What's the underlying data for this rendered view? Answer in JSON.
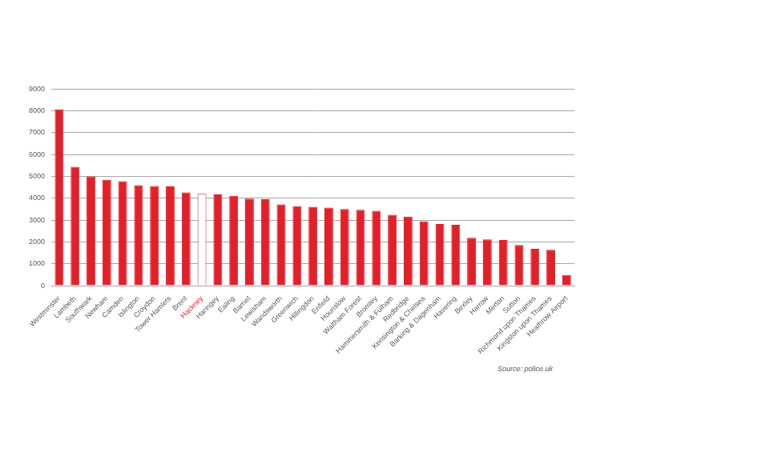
{
  "chart_data": {
    "type": "bar",
    "categories": [
      "Westminster",
      "Lambeth",
      "Southwark",
      "Newham",
      "Camden",
      "Islington",
      "Croydon",
      "Tower Hamlets",
      "Brent",
      "Hackney",
      "Haringey",
      "Ealing",
      "Barnet",
      "Lewisham",
      "Wandsworth",
      "Greenwich",
      "Hillingdon",
      "Enfield",
      "Hounslow",
      "Waltham Forest",
      "Bromley",
      "Hammersmith & Fulham",
      "Redbridge",
      "Kensington & Chelsea",
      "Barking & Dagenham",
      "Havering",
      "Bexley",
      "Harrow",
      "Merton",
      "Sutton",
      "Richmond upon Thames",
      "Kingston upon Thames",
      "Heathrow Airport"
    ],
    "values": [
      8080,
      5440,
      5000,
      4850,
      4780,
      4600,
      4560,
      4540,
      4270,
      4210,
      4180,
      4110,
      3990,
      3960,
      3720,
      3640,
      3610,
      3570,
      3510,
      3470,
      3430,
      3240,
      3160,
      2950,
      2820,
      2790,
      2190,
      2120,
      2090,
      1860,
      1690,
      1640,
      490
    ],
    "color": "#e3202a",
    "colors": [
      "#e3202a",
      "#e3202a",
      "#e3202a",
      "#e3202a",
      "#e3202a",
      "#e3202a",
      "#e3202a",
      "#e3202a",
      "#e3202a",
      "#ffffff",
      "#e3202a",
      "#e3202a",
      "#e3202a",
      "#e3202a",
      "#e3202a",
      "#e3202a",
      "#e3202a",
      "#e3202a",
      "#e3202a",
      "#e3202a",
      "#e3202a",
      "#e3202a",
      "#e3202a",
      "#e3202a",
      "#e3202a",
      "#e3202a",
      "#e3202a",
      "#e3202a",
      "#e3202a",
      "#e3202a",
      "#e3202a",
      "#e3202a",
      "#e3202a"
    ],
    "ylim": [
      0,
      9000
    ],
    "yticks": [
      0,
      1000,
      2000,
      3000,
      4000,
      5000,
      6000,
      7000,
      8000,
      9000
    ],
    "grid": true,
    "source": "Source: police.uk"
  }
}
